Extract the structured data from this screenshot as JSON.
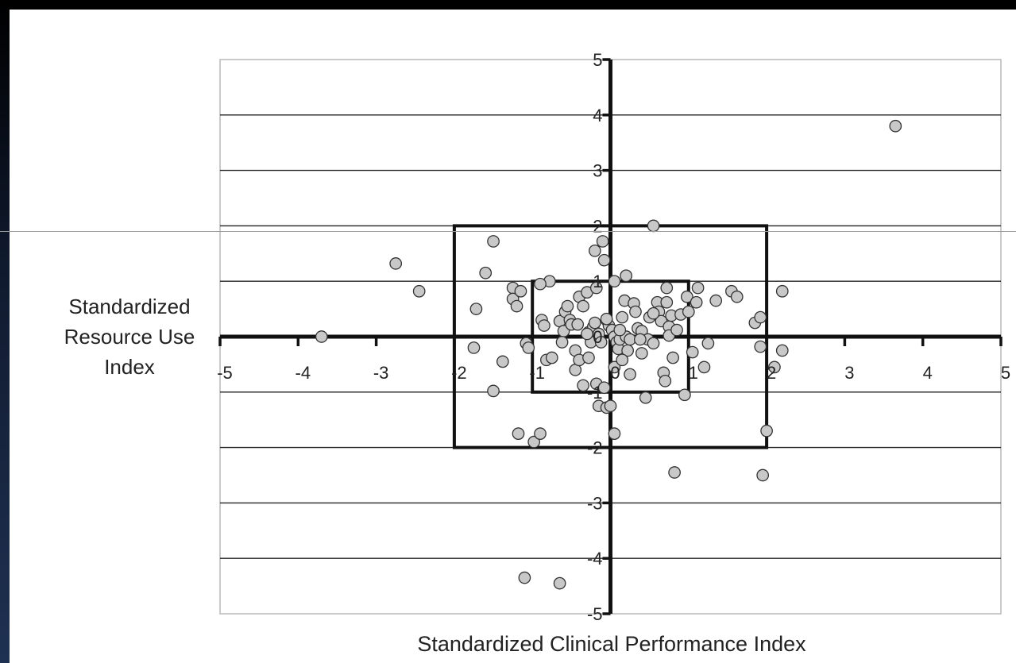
{
  "chart_data": {
    "type": "scatter",
    "xlabel": "Standardized Clinical Performance Index",
    "ylabel": "Standardized Resource Use Index",
    "xlim": [
      -5,
      5
    ],
    "ylim": [
      -5,
      5
    ],
    "x_ticks": [
      "-5",
      "-4",
      "-3",
      "-2",
      "-1",
      "0",
      "1",
      "2",
      "3",
      "4",
      "5"
    ],
    "y_ticks": [
      "5",
      "4",
      "3",
      "2",
      "1",
      "0",
      "-1",
      "-2",
      "-3",
      "-4",
      "-5"
    ],
    "grid": "horizontal",
    "reference_boxes": [
      {
        "x": [
          -2,
          2
        ],
        "y": [
          -2,
          2
        ]
      },
      {
        "x": [
          -1,
          1
        ],
        "y": [
          -1,
          1
        ]
      }
    ],
    "marker_fill": "#c8c8c8",
    "points": [
      [
        3.65,
        3.8
      ],
      [
        -3.7,
        0.0
      ],
      [
        -2.75,
        1.32
      ],
      [
        -2.45,
        0.82
      ],
      [
        -1.5,
        1.72
      ],
      [
        -1.6,
        1.15
      ],
      [
        -1.72,
        0.5
      ],
      [
        -1.75,
        -0.2
      ],
      [
        -1.5,
        -0.98
      ],
      [
        -1.38,
        -0.45
      ],
      [
        -1.25,
        0.88
      ],
      [
        -1.25,
        0.68
      ],
      [
        -1.2,
        0.55
      ],
      [
        -1.15,
        0.82
      ],
      [
        -1.08,
        -0.12
      ],
      [
        -1.05,
        -0.2
      ],
      [
        -1.18,
        -1.75
      ],
      [
        -0.98,
        -1.9
      ],
      [
        -0.9,
        -1.75
      ],
      [
        -1.1,
        -4.35
      ],
      [
        -0.65,
        -4.45
      ],
      [
        -0.78,
        1.0
      ],
      [
        -0.9,
        0.95
      ],
      [
        -0.88,
        0.3
      ],
      [
        -0.85,
        0.2
      ],
      [
        -0.82,
        -0.42
      ],
      [
        -0.75,
        -0.38
      ],
      [
        -0.65,
        0.28
      ],
      [
        -0.6,
        0.1
      ],
      [
        -0.58,
        0.45
      ],
      [
        -0.55,
        0.55
      ],
      [
        -0.52,
        0.3
      ],
      [
        -0.5,
        0.22
      ],
      [
        -0.45,
        -0.6
      ],
      [
        -0.42,
        0.22
      ],
      [
        -0.4,
        0.72
      ],
      [
        -0.35,
        0.55
      ],
      [
        -0.3,
        0.8
      ],
      [
        -0.28,
        0.08
      ],
      [
        -0.25,
        -0.1
      ],
      [
        -0.22,
        0.18
      ],
      [
        -0.45,
        -0.25
      ],
      [
        -0.4,
        -0.42
      ],
      [
        -0.35,
        -0.88
      ],
      [
        -0.28,
        -0.38
      ],
      [
        -0.2,
        0.25
      ],
      [
        -0.18,
        0.88
      ],
      [
        -0.15,
        0.05
      ],
      [
        -0.12,
        -0.1
      ],
      [
        -0.18,
        -0.85
      ],
      [
        -0.15,
        -1.25
      ],
      [
        -0.08,
        -0.92
      ],
      [
        -0.05,
        -1.28
      ],
      [
        -0.05,
        0.3
      ],
      [
        -0.02,
        0.2
      ],
      [
        0.0,
        -1.25
      ],
      [
        0.02,
        0.12
      ],
      [
        0.05,
        0.0
      ],
      [
        0.05,
        -0.55
      ],
      [
        0.08,
        -0.1
      ],
      [
        0.1,
        -0.22
      ],
      [
        0.12,
        -0.05
      ],
      [
        0.15,
        0.35
      ],
      [
        0.18,
        0.65
      ],
      [
        0.2,
        0.0
      ],
      [
        0.22,
        -0.25
      ],
      [
        0.25,
        -0.68
      ],
      [
        0.3,
        0.6
      ],
      [
        0.32,
        0.45
      ],
      [
        0.35,
        0.15
      ],
      [
        0.4,
        0.1
      ],
      [
        0.4,
        -0.3
      ],
      [
        0.45,
        -1.1
      ],
      [
        0.48,
        -0.05
      ],
      [
        0.5,
        0.35
      ],
      [
        0.55,
        -0.12
      ],
      [
        0.6,
        0.62
      ],
      [
        0.62,
        0.45
      ],
      [
        0.65,
        0.28
      ],
      [
        0.68,
        -0.65
      ],
      [
        0.7,
        -0.8
      ],
      [
        0.72,
        0.88
      ],
      [
        0.72,
        0.62
      ],
      [
        0.75,
        0.18
      ],
      [
        0.75,
        0.02
      ],
      [
        0.78,
        0.38
      ],
      [
        0.8,
        -0.38
      ],
      [
        0.85,
        0.12
      ],
      [
        0.9,
        0.4
      ],
      [
        0.95,
        -1.05
      ],
      [
        0.98,
        0.72
      ],
      [
        1.0,
        0.45
      ],
      [
        1.05,
        -0.28
      ],
      [
        1.1,
        0.62
      ],
      [
        1.12,
        0.88
      ],
      [
        1.2,
        -0.55
      ],
      [
        1.25,
        -0.12
      ],
      [
        1.35,
        0.65
      ],
      [
        1.55,
        0.82
      ],
      [
        1.62,
        0.72
      ],
      [
        1.85,
        0.25
      ],
      [
        1.92,
        0.35
      ],
      [
        1.92,
        -0.18
      ],
      [
        2.2,
        0.82
      ],
      [
        2.0,
        -1.7
      ],
      [
        1.95,
        -2.5
      ],
      [
        2.1,
        -0.55
      ],
      [
        2.2,
        -0.25
      ],
      [
        0.55,
        2.0
      ],
      [
        -0.1,
        1.72
      ],
      [
        -0.08,
        1.38
      ],
      [
        -0.2,
        1.55
      ],
      [
        0.2,
        1.1
      ],
      [
        0.05,
        1.0
      ],
      [
        0.82,
        -2.45
      ],
      [
        0.05,
        -1.75
      ],
      [
        -0.05,
        0.32
      ],
      [
        0.12,
        0.12
      ],
      [
        0.25,
        -0.05
      ],
      [
        -0.3,
        0.05
      ],
      [
        0.38,
        -0.05
      ],
      [
        0.55,
        0.42
      ],
      [
        -0.62,
        -0.1
      ],
      [
        0.15,
        -0.42
      ]
    ]
  }
}
